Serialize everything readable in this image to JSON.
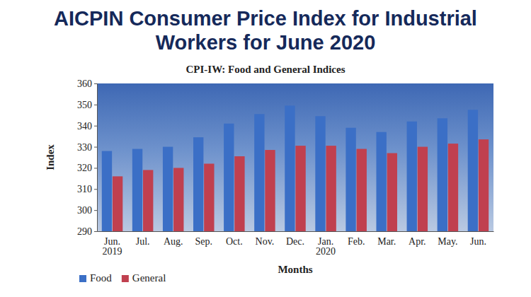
{
  "chart_data": {
    "type": "bar",
    "title": "AICPIN Consumer Price Index for Industrial Workers for June 2020",
    "subtitle": "CPI-IW: Food and General Indices",
    "x_label": "Months",
    "y_label": "Index",
    "categories": [
      "Jun. 2019",
      "Jul.",
      "Aug.",
      "Sep.",
      "Oct.",
      "Nov.",
      "Dec.",
      "Jan. 2020",
      "Feb.",
      "Mar.",
      "Apr.",
      "May.",
      "Jun."
    ],
    "series": [
      {
        "name": "Food",
        "color": "#3b6fc6",
        "values": [
          328,
          329,
          330,
          334.5,
          341,
          345.5,
          349.5,
          344.5,
          339,
          337,
          342,
          343.5,
          347.5
        ]
      },
      {
        "name": "General",
        "color": "#c0404f",
        "values": [
          316,
          319,
          320,
          322,
          325.5,
          328.5,
          330.5,
          330.5,
          329,
          327,
          330,
          331.5,
          333.5
        ]
      }
    ],
    "ylim": [
      290,
      360
    ],
    "yticks": [
      290,
      300,
      310,
      320,
      330,
      340,
      350,
      360
    ],
    "grid": false,
    "legend": "bottom-left"
  }
}
